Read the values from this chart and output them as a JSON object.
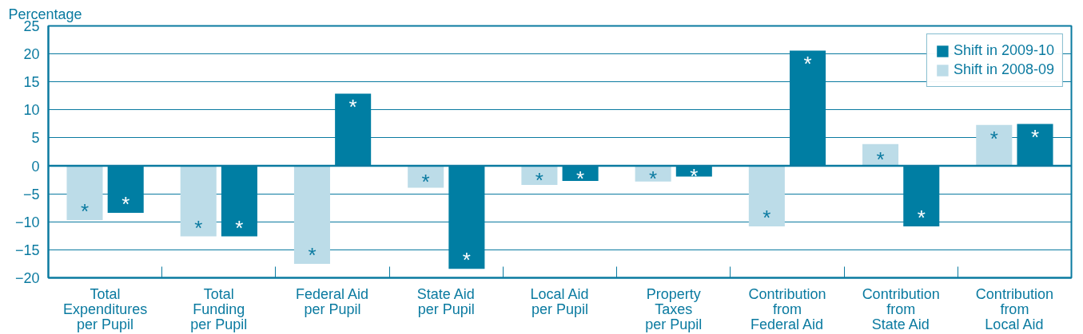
{
  "chart_data": {
    "type": "bar",
    "ylabel": "Percentage",
    "categories": [
      "Total\nExpenditures\nper Pupil",
      "Total\nFunding\nper Pupil",
      "Federal Aid\nper Pupil",
      "State Aid\nper Pupil",
      "Local Aid\nper Pupil",
      "Property\nTaxes\nper Pupil",
      "Contribution\nfrom\nFederal Aid",
      "Contribution\nfrom\nState Aid",
      "Contribution\nfrom\nLocal Aid"
    ],
    "series": [
      {
        "name": "Shift in 2008-09",
        "color": "#bcdce8",
        "values": [
          -9.7,
          -12.6,
          -17.5,
          -3.9,
          -3.4,
          -2.8,
          -10.8,
          3.9,
          7.3
        ],
        "value_labels": [
          "*",
          "*",
          "*",
          "*",
          "*",
          "*",
          "*",
          "*",
          "*"
        ]
      },
      {
        "name": "Shift in 2009-10",
        "color": "#007ea3",
        "values": [
          -8.4,
          -12.6,
          12.9,
          -18.4,
          -2.7,
          -1.9,
          20.6,
          -10.8,
          7.5
        ],
        "value_labels": [
          "*",
          "*",
          "*",
          "*",
          "*",
          "*",
          "*",
          "*",
          "*"
        ]
      }
    ],
    "ylim": [
      -20,
      25
    ],
    "yticks": [
      -20,
      -15,
      -10,
      -5,
      0,
      5,
      10,
      15,
      20,
      25
    ],
    "ref_lines": [
      {
        "axis": "y",
        "value": 0
      }
    ],
    "grid": "y",
    "legend": "top right"
  }
}
